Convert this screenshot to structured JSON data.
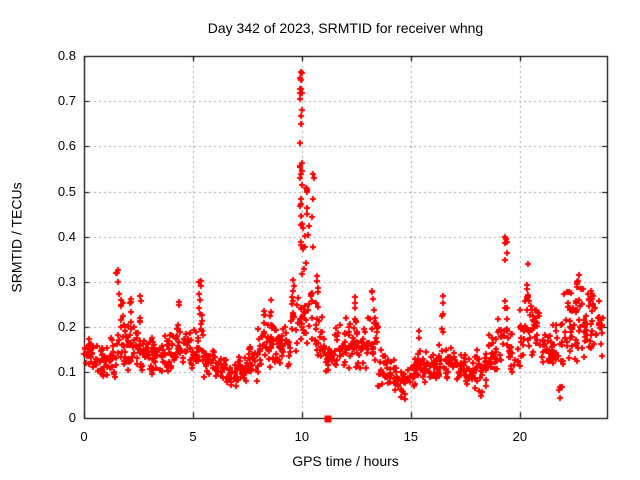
{
  "title": "Day 342 of 2023, SRMTID for receiver whng",
  "axes": {
    "xlabel": "GPS time / hours",
    "ylabel": "SRMTID / TECUs"
  },
  "colors": {
    "background": "#ffffff",
    "marker": "#ff0000",
    "grid": "#a8a8a8",
    "axis": "#000000",
    "text": "#000000"
  },
  "chart_data": {
    "type": "scatter",
    "title": "Day 342 of 2023, SRMTID for receiver whng",
    "xlabel": "GPS time / hours",
    "ylabel": "SRMTID / TECUs",
    "xlim": [
      0,
      24
    ],
    "ylim": [
      0,
      0.8
    ],
    "x_ticks": [
      0,
      5,
      10,
      15,
      20
    ],
    "x_tick_labels": [
      "0",
      "5",
      "10",
      "15",
      "20"
    ],
    "y_ticks": [
      0,
      0.1,
      0.2,
      0.3,
      0.4,
      0.5,
      0.6,
      0.7,
      0.8
    ],
    "y_tick_labels": [
      "0",
      "0.1",
      "0.2",
      "0.3",
      "0.4",
      "0.5",
      "0.6",
      "0.7",
      "0.8"
    ],
    "grid": "dashed",
    "legend": "none",
    "marker": {
      "shape": "plus",
      "color": "#ff0000",
      "size": 7
    },
    "peak_value": 0.76,
    "peak_hour": 10.0,
    "baseline_bins_format": [
      "hour_start",
      "hour_end",
      "y_min",
      "y_max",
      "count"
    ],
    "baseline_bins": [
      [
        0.0,
        0.5,
        0.1,
        0.19,
        26
      ],
      [
        0.5,
        1.0,
        0.08,
        0.17,
        26
      ],
      [
        1.0,
        1.5,
        0.08,
        0.18,
        26
      ],
      [
        1.5,
        2.0,
        0.11,
        0.24,
        24
      ],
      [
        2.0,
        2.5,
        0.1,
        0.23,
        24
      ],
      [
        2.5,
        3.0,
        0.1,
        0.2,
        24
      ],
      [
        3.0,
        3.5,
        0.09,
        0.18,
        24
      ],
      [
        3.5,
        4.0,
        0.1,
        0.2,
        24
      ],
      [
        4.0,
        4.5,
        0.1,
        0.21,
        24
      ],
      [
        4.5,
        5.0,
        0.1,
        0.2,
        24
      ],
      [
        5.0,
        5.5,
        0.11,
        0.23,
        24
      ],
      [
        5.5,
        6.0,
        0.08,
        0.17,
        22
      ],
      [
        6.0,
        6.5,
        0.07,
        0.14,
        22
      ],
      [
        6.5,
        7.0,
        0.06,
        0.12,
        22
      ],
      [
        7.0,
        7.5,
        0.07,
        0.14,
        22
      ],
      [
        7.5,
        8.0,
        0.08,
        0.17,
        24
      ],
      [
        8.0,
        8.5,
        0.1,
        0.21,
        24
      ],
      [
        8.5,
        9.0,
        0.1,
        0.22,
        24
      ],
      [
        9.0,
        9.5,
        0.1,
        0.21,
        24
      ],
      [
        9.5,
        10.0,
        0.13,
        0.28,
        20
      ],
      [
        10.0,
        10.5,
        0.14,
        0.3,
        20
      ],
      [
        10.5,
        11.0,
        0.11,
        0.25,
        20
      ],
      [
        11.0,
        11.5,
        0.09,
        0.19,
        22
      ],
      [
        11.5,
        12.0,
        0.1,
        0.21,
        24
      ],
      [
        12.0,
        12.5,
        0.1,
        0.23,
        24
      ],
      [
        12.5,
        13.0,
        0.1,
        0.22,
        24
      ],
      [
        13.0,
        13.5,
        0.1,
        0.24,
        24
      ],
      [
        13.5,
        14.0,
        0.06,
        0.16,
        22
      ],
      [
        14.0,
        14.5,
        0.05,
        0.13,
        20
      ],
      [
        14.5,
        15.0,
        0.04,
        0.12,
        20
      ],
      [
        15.0,
        15.5,
        0.06,
        0.15,
        22
      ],
      [
        15.5,
        16.0,
        0.07,
        0.15,
        22
      ],
      [
        16.0,
        16.5,
        0.07,
        0.17,
        22
      ],
      [
        16.5,
        17.0,
        0.08,
        0.16,
        22
      ],
      [
        17.0,
        17.5,
        0.07,
        0.15,
        22
      ],
      [
        17.5,
        18.0,
        0.05,
        0.14,
        24
      ],
      [
        18.0,
        18.5,
        0.06,
        0.16,
        24
      ],
      [
        18.5,
        19.0,
        0.08,
        0.19,
        24
      ],
      [
        19.0,
        19.5,
        0.11,
        0.25,
        20
      ],
      [
        19.5,
        20.0,
        0.08,
        0.19,
        18
      ],
      [
        20.0,
        20.5,
        0.12,
        0.27,
        22
      ],
      [
        20.5,
        21.0,
        0.12,
        0.28,
        24
      ],
      [
        21.0,
        21.5,
        0.1,
        0.21,
        22
      ],
      [
        21.5,
        22.0,
        0.07,
        0.24,
        22
      ],
      [
        22.0,
        22.5,
        0.11,
        0.29,
        26
      ],
      [
        22.5,
        23.0,
        0.1,
        0.31,
        26
      ],
      [
        23.0,
        23.5,
        0.12,
        0.29,
        26
      ],
      [
        23.5,
        23.8,
        0.13,
        0.27,
        16
      ]
    ],
    "spike_columns_format": [
      "hour_center",
      "hour_width",
      "y_min",
      "y_max",
      "count"
    ],
    "spike_columns": [
      [
        1.55,
        0.12,
        0.24,
        0.345,
        6
      ],
      [
        1.75,
        0.15,
        0.2,
        0.3,
        6
      ],
      [
        2.15,
        0.12,
        0.2,
        0.29,
        5
      ],
      [
        2.6,
        0.1,
        0.19,
        0.275,
        5
      ],
      [
        4.35,
        0.12,
        0.19,
        0.265,
        5
      ],
      [
        5.3,
        0.12,
        0.21,
        0.32,
        7
      ],
      [
        8.3,
        0.1,
        0.19,
        0.25,
        4
      ],
      [
        8.6,
        0.1,
        0.19,
        0.28,
        5
      ],
      [
        9.6,
        0.15,
        0.2,
        0.31,
        6
      ],
      [
        9.95,
        0.12,
        0.55,
        0.765,
        16
      ],
      [
        9.95,
        0.1,
        0.44,
        0.55,
        8
      ],
      [
        10.05,
        0.2,
        0.31,
        0.44,
        10
      ],
      [
        10.25,
        0.12,
        0.3,
        0.52,
        9
      ],
      [
        10.5,
        0.1,
        0.32,
        0.56,
        6
      ],
      [
        10.7,
        0.1,
        0.24,
        0.34,
        6
      ],
      [
        12.45,
        0.12,
        0.19,
        0.27,
        5
      ],
      [
        13.25,
        0.12,
        0.2,
        0.285,
        5
      ],
      [
        14.6,
        0.3,
        0.04,
        0.06,
        3
      ],
      [
        15.35,
        0.1,
        0.14,
        0.22,
        4
      ],
      [
        16.45,
        0.1,
        0.16,
        0.28,
        6
      ],
      [
        18.2,
        0.2,
        0.045,
        0.06,
        3
      ],
      [
        19.35,
        0.12,
        0.24,
        0.44,
        9
      ],
      [
        20.35,
        0.15,
        0.24,
        0.34,
        7
      ],
      [
        21.9,
        0.2,
        0.04,
        0.08,
        4
      ],
      [
        22.65,
        0.12,
        0.28,
        0.35,
        5
      ],
      [
        23.3,
        0.12,
        0.26,
        0.33,
        4
      ]
    ],
    "outlier_marker": {
      "x": 11.2,
      "y": 0,
      "shape": "filled-square",
      "color": "#ff0000",
      "size": 7
    },
    "seed": 11
  }
}
